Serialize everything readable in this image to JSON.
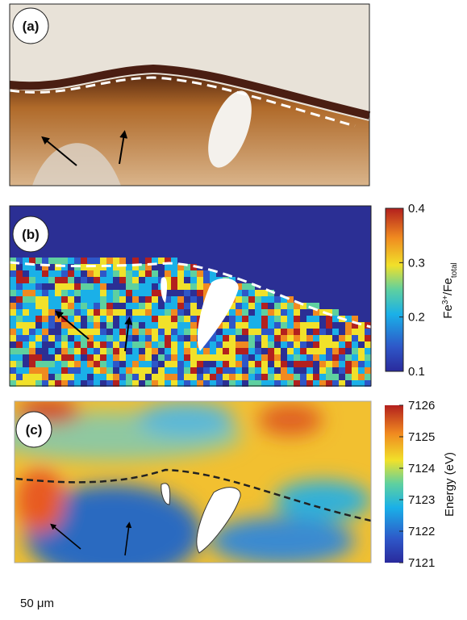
{
  "panels": [
    {
      "label": "(a)"
    },
    {
      "label": "(b)",
      "colorbar": {
        "label": {
          "base": "Fe",
          "sup": "3+",
          "mid": "/Fe",
          "sub": "total"
        },
        "lim": [
          0.1,
          0.4
        ],
        "ticks": [
          0.4,
          0.3,
          0.2,
          0.1
        ]
      }
    },
    {
      "label": "(c)",
      "colorbar": {
        "label": "Energy (eV)",
        "lim": [
          7121,
          7126
        ],
        "ticks": [
          7126,
          7125,
          7124,
          7123,
          7122,
          7121
        ]
      }
    }
  ],
  "scale_bar": "50 μm"
}
